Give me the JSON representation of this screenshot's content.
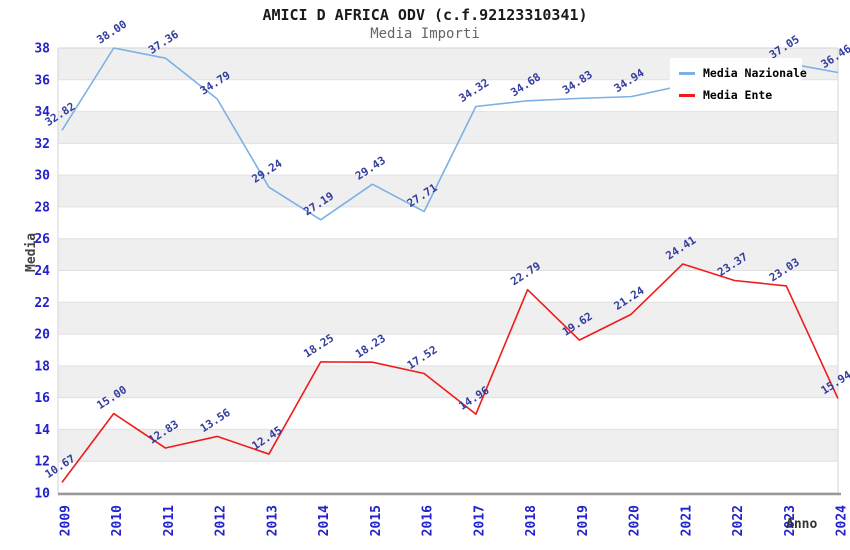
{
  "header": {
    "title": "AMICI D AFRICA ODV (c.f.92123310341)",
    "subtitle": "Media Importi"
  },
  "chart_data": {
    "type": "line",
    "title": "AMICI D AFRICA ODV (c.f.92123310341)",
    "subtitle": "Media Importi",
    "xlabel": "Anno",
    "ylabel": "Media",
    "categories": [
      "2009",
      "2010",
      "2011",
      "2012",
      "2013",
      "2014",
      "2015",
      "2016",
      "2017",
      "2018",
      "2019",
      "2020",
      "2021",
      "2022",
      "2023",
      "2024"
    ],
    "series": [
      {
        "name": "Media Nazionale",
        "color": "#7db0e4",
        "values": [
          32.82,
          38.0,
          37.36,
          34.79,
          29.24,
          27.19,
          29.43,
          27.71,
          34.32,
          34.68,
          34.83,
          34.94,
          35.65,
          36.36,
          37.05,
          36.46
        ],
        "labels_hidden_by_legend_indexes": [
          12,
          13
        ],
        "estimated_indexes": [
          12,
          13
        ]
      },
      {
        "name": "Media Ente",
        "color": "#ee1c1c",
        "values": [
          10.67,
          15.0,
          12.83,
          13.56,
          12.45,
          18.25,
          18.23,
          17.52,
          14.96,
          22.79,
          19.62,
          21.24,
          24.41,
          23.37,
          23.03,
          15.94
        ],
        "labels_hidden_by_legend_indexes": [],
        "estimated_indexes": []
      }
    ],
    "ylim": [
      10,
      38
    ],
    "ytick_step": 2,
    "grid": true,
    "legend_position": "top-right",
    "colors": {
      "tick_label": "#2222cc",
      "data_label": "#333d9e",
      "band": "#efefef",
      "gridline": "#e0e0e0",
      "axis_line": "#999999",
      "plot_border": "#d4d4d4",
      "title": "#1a1a1a",
      "subtitle": "#666666",
      "axis_title": "#444444"
    }
  }
}
